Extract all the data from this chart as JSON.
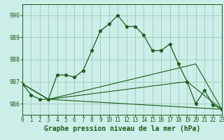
{
  "bg_color": "#cceee8",
  "grid_color": "#99ccbb",
  "line_color": "#1a5c1a",
  "xlabel": "Graphe pression niveau de la mer (hPa)",
  "xlabel_fontsize": 7,
  "ylim": [
    985.5,
    990.5
  ],
  "xlim": [
    0,
    23
  ],
  "yticks": [
    986,
    987,
    988,
    989,
    990
  ],
  "xticks": [
    0,
    1,
    2,
    3,
    4,
    5,
    6,
    7,
    8,
    9,
    10,
    11,
    12,
    13,
    14,
    15,
    16,
    17,
    18,
    19,
    20,
    21,
    22,
    23
  ],
  "tick_fontsize": 5.5,
  "series_main": {
    "x": [
      0,
      1,
      2,
      3,
      4,
      5,
      6,
      7,
      8,
      9,
      10,
      11,
      12,
      13,
      14,
      15,
      16,
      17,
      18,
      19,
      20,
      21,
      22,
      23
    ],
    "y": [
      986.9,
      986.4,
      986.2,
      986.2,
      987.3,
      987.3,
      987.2,
      987.5,
      988.4,
      989.3,
      989.6,
      990.0,
      989.5,
      989.5,
      989.1,
      988.4,
      988.4,
      988.7,
      987.8,
      987.0,
      986.0,
      986.6,
      985.95,
      985.75
    ]
  },
  "series_lines": [
    {
      "x": [
        0,
        3,
        23
      ],
      "y": [
        986.9,
        986.2,
        985.75
      ]
    },
    {
      "x": [
        0,
        3,
        19,
        23
      ],
      "y": [
        986.9,
        986.2,
        987.0,
        985.75
      ]
    },
    {
      "x": [
        0,
        3,
        20,
        23
      ],
      "y": [
        986.9,
        986.2,
        987.8,
        985.75
      ]
    }
  ]
}
